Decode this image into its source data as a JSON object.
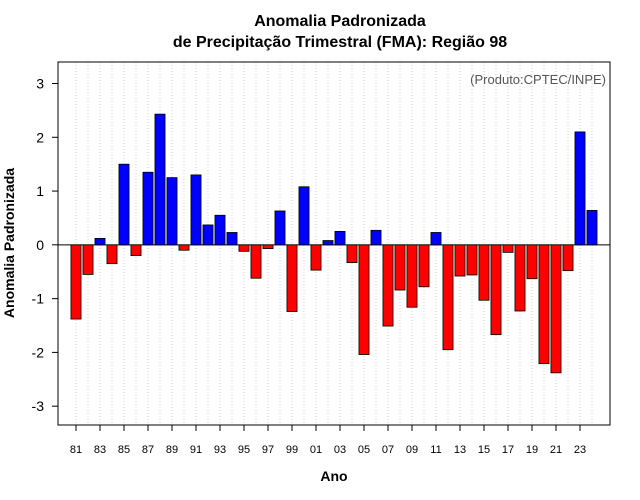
{
  "chart_data": {
    "type": "bar",
    "title": "Anomalia Padronizada",
    "subtitle": "de Precipitação Trimestral (FMA): Região 98",
    "xlabel": "Ano",
    "ylabel": "Anomalia Padronizada",
    "credit": "(Produto:CPTEC/INPE)",
    "ylim": [
      -3.35,
      3.4
    ],
    "yticks": [
      -3,
      -2,
      -1,
      0,
      1,
      2,
      3
    ],
    "ytick_labels": [
      "-3",
      "-2",
      "-1",
      "0",
      "1",
      "2",
      "3"
    ],
    "xlim": [
      1979.5,
      2025.5
    ],
    "xtick_labels": [
      {
        "year": 1981,
        "label": "81"
      },
      {
        "year": 1983,
        "label": "83"
      },
      {
        "year": 1985,
        "label": "85"
      },
      {
        "year": 1987,
        "label": "87"
      },
      {
        "year": 1989,
        "label": "89"
      },
      {
        "year": 1991,
        "label": "91"
      },
      {
        "year": 1993,
        "label": "93"
      },
      {
        "year": 1995,
        "label": "95"
      },
      {
        "year": 1997,
        "label": "97"
      },
      {
        "year": 1999,
        "label": "99"
      },
      {
        "year": 2001,
        "label": "01"
      },
      {
        "year": 2003,
        "label": "03"
      },
      {
        "year": 2005,
        "label": "05"
      },
      {
        "year": 2007,
        "label": "07"
      },
      {
        "year": 2009,
        "label": "09"
      },
      {
        "year": 2011,
        "label": "11"
      },
      {
        "year": 2013,
        "label": "13"
      },
      {
        "year": 2015,
        "label": "15"
      },
      {
        "year": 2017,
        "label": "17"
      },
      {
        "year": 2019,
        "label": "19"
      },
      {
        "year": 2021,
        "label": "21"
      },
      {
        "year": 2023,
        "label": "23"
      }
    ],
    "positive_color": "#0000ff",
    "negative_color": "#ff0000",
    "years": [
      1981,
      1982,
      1983,
      1984,
      1985,
      1986,
      1987,
      1988,
      1989,
      1990,
      1991,
      1992,
      1993,
      1994,
      1995,
      1996,
      1997,
      1998,
      1999,
      2000,
      2001,
      2002,
      2003,
      2004,
      2005,
      2006,
      2007,
      2008,
      2009,
      2010,
      2011,
      2012,
      2013,
      2014,
      2015,
      2016,
      2017,
      2018,
      2019,
      2020,
      2021,
      2022,
      2023,
      2024
    ],
    "values": [
      -1.38,
      -0.55,
      0.12,
      -0.35,
      1.5,
      -0.2,
      1.35,
      2.43,
      1.25,
      -0.1,
      1.3,
      0.37,
      0.55,
      0.23,
      -0.12,
      -0.62,
      -0.07,
      0.63,
      -1.24,
      1.08,
      -0.47,
      0.08,
      0.25,
      -0.33,
      -2.04,
      0.27,
      -1.51,
      -0.84,
      -1.16,
      -0.78,
      0.23,
      -1.95,
      -0.58,
      -0.56,
      -1.03,
      -1.67,
      -0.14,
      -1.23,
      -0.63,
      -2.21,
      -2.38,
      -0.48,
      2.1,
      0.64
    ]
  }
}
